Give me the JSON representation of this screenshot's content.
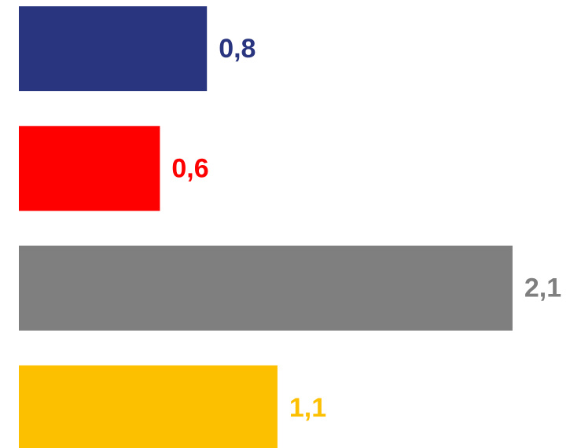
{
  "chart_data": {
    "type": "bar",
    "orientation": "horizontal",
    "values": [
      0.8,
      0.6,
      2.1,
      1.1
    ],
    "value_labels": [
      "0,8",
      "0,6",
      "2,1",
      "1,1"
    ],
    "colors": [
      "#2a3580",
      "#ff0000",
      "#7f7f7f",
      "#fdc000"
    ]
  }
}
